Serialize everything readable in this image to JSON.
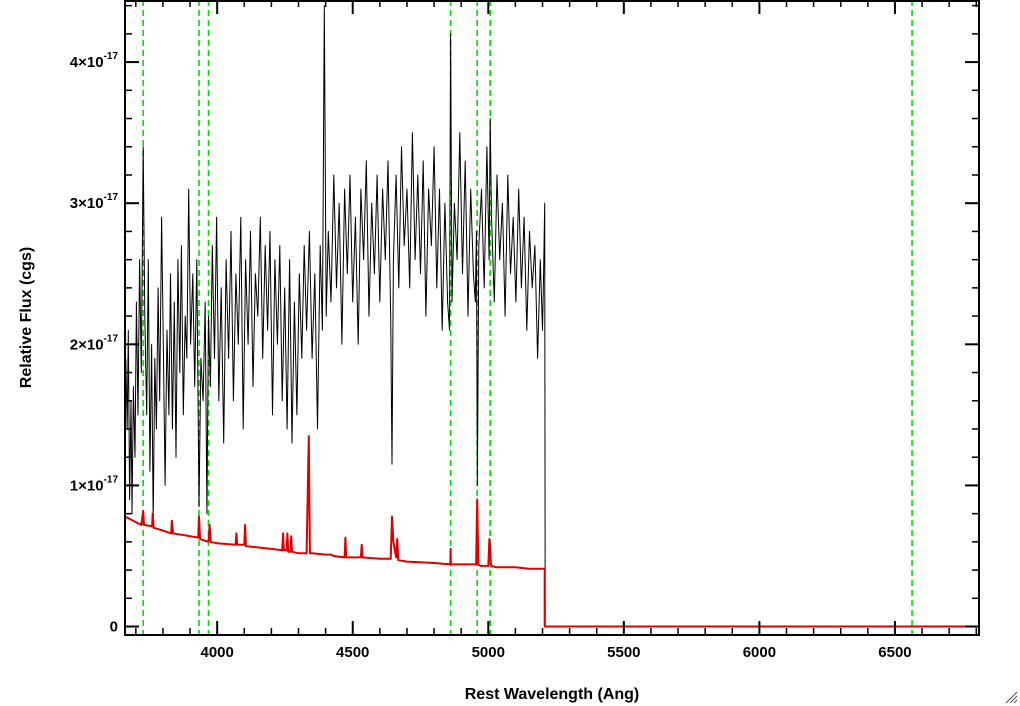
{
  "chart_data": {
    "type": "line",
    "title": "",
    "xlabel": "Rest Wavelength (Ang)",
    "ylabel": "Relative Flux (cgs)",
    "xlim": [
      3660,
      6810
    ],
    "ylim": [
      -6e-19,
      4.44e-17
    ],
    "x_ticks": [
      {
        "value": 4000,
        "label": "4000"
      },
      {
        "value": 4500,
        "label": "4500"
      },
      {
        "value": 5000,
        "label": "5000"
      },
      {
        "value": 5500,
        "label": "5500"
      },
      {
        "value": 6000,
        "label": "6000"
      },
      {
        "value": 6500,
        "label": "6500"
      }
    ],
    "y_ticks": [
      {
        "value": 0,
        "mantissa": "0",
        "exponent": ""
      },
      {
        "value": 1e-17,
        "mantissa": "1×10",
        "exponent": "-17"
      },
      {
        "value": 2e-17,
        "mantissa": "2×10",
        "exponent": "-17"
      },
      {
        "value": 3e-17,
        "mantissa": "3×10",
        "exponent": "-17"
      },
      {
        "value": 4e-17,
        "mantissa": "4×10",
        "exponent": "-17"
      }
    ],
    "grid": false,
    "vlines": {
      "color": "#00dd00",
      "style": "dashed",
      "x": [
        3727,
        3933,
        3968,
        4861,
        4959,
        5007,
        6563
      ]
    },
    "series": [
      {
        "color": "#000000",
        "x": [
          3663,
          3668,
          3672,
          3677,
          3682,
          3686,
          3691,
          3697,
          3702,
          3708,
          3714,
          3720,
          3727,
          3733,
          3740,
          3746,
          3752,
          3758,
          3764,
          3770,
          3776,
          3782,
          3788,
          3795,
          3802,
          3808,
          3815,
          3822,
          3828,
          3835,
          3842,
          3848,
          3855,
          3862,
          3868,
          3875,
          3882,
          3888,
          3895,
          3902,
          3910,
          3917,
          3925,
          3933,
          3940,
          3948,
          3956,
          3962,
          3968,
          3975,
          3982,
          3990,
          3998,
          4006,
          4015,
          4024,
          4033,
          4042,
          4051,
          4060,
          4069,
          4078,
          4087,
          4096,
          4105,
          4114,
          4123,
          4132,
          4141,
          4150,
          4159,
          4168,
          4177,
          4186,
          4195,
          4204,
          4213,
          4222,
          4231,
          4240,
          4249,
          4258,
          4267,
          4276,
          4285,
          4294,
          4303,
          4312,
          4321,
          4330,
          4340,
          4350,
          4360,
          4370,
          4380,
          4388,
          4395,
          4402,
          4410,
          4420,
          4430,
          4440,
          4450,
          4460,
          4470,
          4480,
          4490,
          4500,
          4510,
          4520,
          4530,
          4540,
          4550,
          4560,
          4570,
          4580,
          4590,
          4600,
          4610,
          4620,
          4630,
          4640,
          4645,
          4650,
          4660,
          4670,
          4680,
          4690,
          4700,
          4710,
          4720,
          4730,
          4740,
          4750,
          4760,
          4770,
          4780,
          4790,
          4800,
          4810,
          4820,
          4830,
          4840,
          4850,
          4857,
          4861,
          4866,
          4875,
          4885,
          4895,
          4905,
          4915,
          4925,
          4935,
          4945,
          4952,
          4956,
          4960,
          4965,
          4975,
          4985,
          4995,
          5003,
          5007,
          5012,
          5022,
          5032,
          5042,
          5052,
          5062,
          5072,
          5082,
          5092,
          5102,
          5112,
          5122,
          5132,
          5142,
          5152,
          5162,
          5172,
          5182,
          5192,
          5200,
          5204,
          5208,
          5210
        ],
        "y": [
          1.9e-17,
          1.4e-17,
          2.1e-17,
          9e-18,
          1.6e-17,
          8e-18,
          1.7e-17,
          1.2e-17,
          2.3e-17,
          1.5e-17,
          2.6e-17,
          1.8e-17,
          3.4e-17,
          2.2e-17,
          1.5e-17,
          2.6e-17,
          1.1e-17,
          2e-17,
          7.5e-18,
          1.9e-17,
          1.4e-17,
          2.4e-17,
          1.6e-17,
          2.9e-17,
          1.9e-17,
          1e-17,
          2.1e-17,
          1.5e-17,
          2.5e-17,
          1.4e-17,
          2.3e-17,
          1.2e-17,
          2.6e-17,
          1.8e-17,
          2.7e-17,
          1.5e-17,
          2.2e-17,
          1.9e-17,
          3.1e-17,
          2e-17,
          2.5e-17,
          1.7e-17,
          2.6e-17,
          8.5e-18,
          1.9e-17,
          1.6e-17,
          2.3e-17,
          8e-18,
          2.2e-17,
          1.7e-17,
          2.7e-17,
          1.9e-17,
          2.9e-17,
          1.6e-17,
          2.4e-17,
          1.3e-17,
          2.6e-17,
          1.9e-17,
          2.8e-17,
          1.6e-17,
          2.5e-17,
          2e-17,
          2.9e-17,
          1.4e-17,
          2.6e-17,
          2e-17,
          2.8e-17,
          1.7e-17,
          2.5e-17,
          2.2e-17,
          2.9e-17,
          1.9e-17,
          2.7e-17,
          2.1e-17,
          2.8e-17,
          1.5e-17,
          2.6e-17,
          2e-17,
          2.7e-17,
          1.6e-17,
          2.4e-17,
          1.4e-17,
          2.6e-17,
          1.3e-17,
          2.3e-17,
          1.5e-17,
          2.5e-17,
          1.9e-17,
          2.7e-17,
          2.1e-17,
          2.8e-17,
          1.9e-17,
          2.5e-17,
          1.4e-17,
          2.7e-17,
          2.1e-17,
          4.4e-17,
          2.2e-17,
          2.8e-17,
          2.3e-17,
          3.2e-17,
          2.4e-17,
          3e-17,
          2e-17,
          3.1e-17,
          2.5e-17,
          3.2e-17,
          2.3e-17,
          2.9e-17,
          2e-17,
          3.1e-17,
          2.6e-17,
          3.3e-17,
          2.2e-17,
          3e-17,
          2.5e-17,
          3.2e-17,
          2.3e-17,
          3.1e-17,
          2.6e-17,
          3.3e-17,
          2.2e-17,
          1.15e-17,
          2.6e-17,
          3.2e-17,
          2.4e-17,
          3.4e-17,
          2.7e-17,
          3.1e-17,
          2.4e-17,
          3.5e-17,
          2.6e-17,
          3.2e-17,
          2.5e-17,
          3.3e-17,
          2.2e-17,
          3.1e-17,
          2.7e-17,
          3.4e-17,
          2.4e-17,
          3.1e-17,
          2.1e-17,
          3e-17,
          2.3e-17,
          2.1e-17,
          4.2e-17,
          2.3e-17,
          3e-17,
          2.6e-17,
          3.5e-17,
          2.5e-17,
          3.3e-17,
          2.2e-17,
          3.1e-17,
          2.5e-17,
          2.3e-17,
          2.8e-17,
          1e-17,
          2.7e-17,
          3.1e-17,
          2.4e-17,
          3.4e-17,
          2.6e-17,
          3.6e-17,
          2.9e-17,
          2.3e-17,
          3.2e-17,
          2.6e-17,
          3e-17,
          2.2e-17,
          3.2e-17,
          2.5e-17,
          2.9e-17,
          2.3e-17,
          3.1e-17,
          2.4e-17,
          2.9e-17,
          2.1e-17,
          2.8e-17,
          2.4e-17,
          2.7e-17,
          1.9e-17,
          2.6e-17,
          2.1e-17,
          2.5e-17,
          3e-17,
          0.0
        ]
      },
      {
        "color": "#dd0000",
        "x": [
          3660,
          3700,
          3720,
          3727,
          3730,
          3760,
          3762,
          3766,
          3800,
          3830,
          3833,
          3837,
          3900,
          3930,
          3933,
          3937,
          3968,
          3972,
          3976,
          4000,
          4068,
          4071,
          4074,
          4100,
          4103,
          4106,
          4200,
          4240,
          4243,
          4246,
          4256,
          4259,
          4262,
          4270,
          4273,
          4276,
          4300,
          4330,
          4338,
          4340,
          4342,
          4350,
          4400,
          4420,
          4430,
          4470,
          4473,
          4476,
          4530,
          4533,
          4536,
          4600,
          4640,
          4645,
          4650,
          4660,
          4664,
          4668,
          4700,
          4800,
          4860,
          4861,
          4862,
          4900,
          4955,
          4959,
          4963,
          4970,
          5000,
          5004,
          5007,
          5010,
          5030,
          5050,
          5100,
          5150,
          5200,
          5208,
          5208,
          5210,
          6810
        ],
        "y": [
          7.8e-18,
          7.4e-18,
          7.2e-18,
          8.2e-18,
          7.2e-18,
          7.1e-18,
          8e-18,
          7e-18,
          6.8e-18,
          6.6e-18,
          7.5e-18,
          6.6e-18,
          6.4e-18,
          6.3e-18,
          7.8e-18,
          6.2e-18,
          6e-18,
          7.2e-18,
          6e-18,
          5.9e-18,
          5.8e-18,
          6.6e-18,
          5.8e-18,
          5.8e-18,
          7.2e-18,
          5.7e-18,
          5.5e-18,
          5.4e-18,
          6.6e-18,
          5.4e-18,
          5.4e-18,
          6.6e-18,
          5.3e-18,
          5.3e-18,
          6.4e-18,
          5.3e-18,
          5.2e-18,
          5.2e-18,
          1.35e-17,
          9e-18,
          5.2e-18,
          5.2e-18,
          5.1e-18,
          5.1e-18,
          5e-18,
          4.9e-18,
          6.3e-18,
          4.9e-18,
          4.9e-18,
          5.8e-18,
          4.9e-18,
          4.8e-18,
          4.8e-18,
          7.8e-18,
          6e-18,
          4.9e-18,
          6.2e-18,
          4.7e-18,
          4.6e-18,
          4.5e-18,
          4.4e-18,
          5.5e-18,
          4.4e-18,
          4.4e-18,
          4.4e-18,
          9e-18,
          4.4e-18,
          4.3e-18,
          4.3e-18,
          6.2e-18,
          5.5e-18,
          4.3e-18,
          4.2e-18,
          4.2e-18,
          4.2e-18,
          4.1e-18,
          4.1e-18,
          4.1e-18,
          0.0,
          0.0,
          0.0
        ]
      }
    ]
  }
}
